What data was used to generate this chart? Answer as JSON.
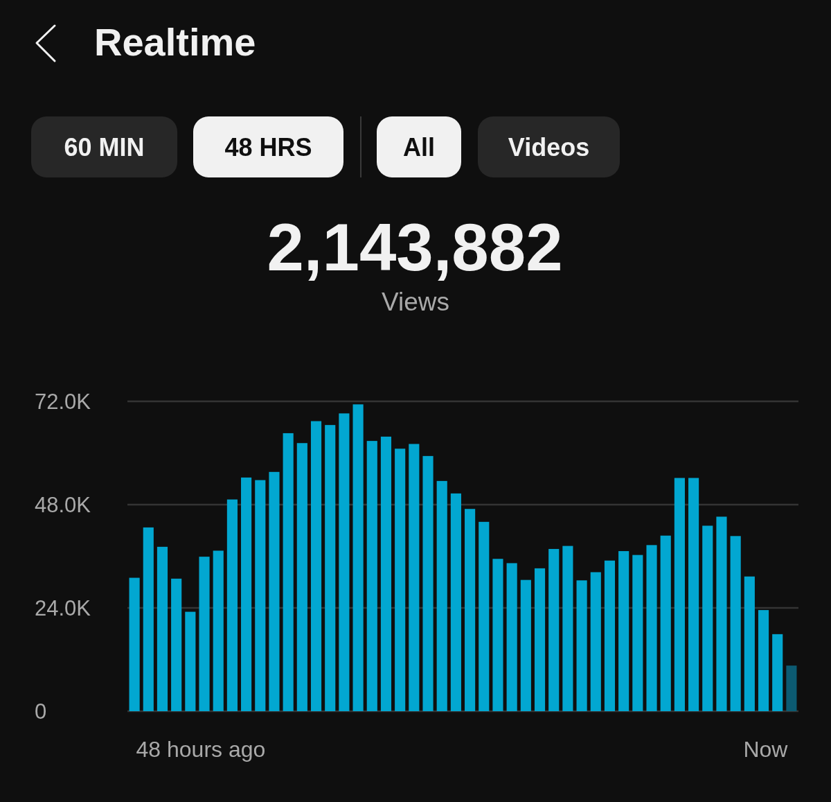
{
  "chart_data": {
    "type": "bar",
    "title": "Realtime",
    "annotations": [
      "60 MIN",
      "48 HRS",
      "All",
      "Videos",
      "2,143,882",
      "Views",
      "48 hours ago",
      "Now"
    ],
    "categories": [
      null,
      null,
      null,
      null,
      null,
      null,
      null,
      null,
      null,
      null,
      null,
      null,
      null,
      null,
      null,
      null,
      null,
      null,
      null,
      null,
      null,
      null,
      null,
      null,
      null,
      null,
      null,
      null,
      null,
      null,
      null,
      null,
      null,
      null,
      null,
      null,
      null,
      null,
      null,
      null,
      null,
      null,
      null,
      null,
      null,
      null,
      null,
      null
    ],
    "values": [
      31000,
      42700,
      38200,
      30800,
      23100,
      35900,
      37300,
      49200,
      54300,
      53700,
      55600,
      64600,
      62300,
      67400,
      66500,
      69200,
      71300,
      62800,
      63800,
      61000,
      62100,
      59300,
      53500,
      50600,
      47000,
      44000,
      35400,
      34400,
      30500,
      33200,
      37700,
      38400,
      30400,
      32300,
      35000,
      37200,
      36300,
      38600,
      40800,
      54200,
      54200,
      43100,
      45200,
      40700,
      31300,
      23500,
      17900,
      10600
    ],
    "colors": [
      "#02a7d1",
      "#02a7d1",
      "#02a7d1",
      "#02a7d1",
      "#02a7d1",
      "#02a7d1",
      "#02a7d1",
      "#02a7d1",
      "#02a7d1",
      "#02a7d1",
      "#02a7d1",
      "#02a7d1",
      "#02a7d1",
      "#02a7d1",
      "#02a7d1",
      "#02a7d1",
      "#02a7d1",
      "#02a7d1",
      "#02a7d1",
      "#02a7d1",
      "#02a7d1",
      "#02a7d1",
      "#02a7d1",
      "#02a7d1",
      "#02a7d1",
      "#02a7d1",
      "#02a7d1",
      "#02a7d1",
      "#02a7d1",
      "#02a7d1",
      "#02a7d1",
      "#02a7d1",
      "#02a7d1",
      "#02a7d1",
      "#02a7d1",
      "#02a7d1",
      "#02a7d1",
      "#02a7d1",
      "#02a7d1",
      "#02a7d1",
      "#02a7d1",
      "#02a7d1",
      "#02a7d1",
      "#02a7d1",
      "#02a7d1",
      "#02a7d1",
      "#02a7d1",
      "#0c5b72"
    ],
    "ylim": [
      0,
      72000
    ],
    "yticks": [
      0,
      {
        "value": 24000,
        "label": "24.0K"
      },
      {
        "value": 48000,
        "label": "48.0K"
      },
      {
        "value": 72000,
        "label": "72.0K"
      }
    ],
    "grid": "y"
  }
}
